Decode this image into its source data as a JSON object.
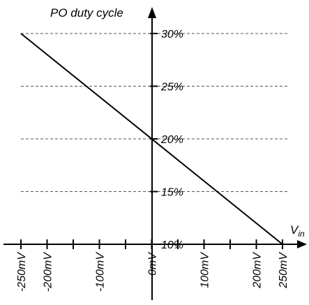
{
  "chart_data": {
    "type": "line",
    "title": "",
    "ylabel": "PO duty cycle",
    "xlabel": {
      "main": "V",
      "sub": "in"
    },
    "x_unit": "mV",
    "y_unit": "%",
    "xlim": [
      -250,
      250
    ],
    "ylim": [
      10,
      30
    ],
    "grid_y": true,
    "x_ticks": [
      -250,
      -200,
      -150,
      -100,
      -50,
      0,
      50,
      100,
      150,
      200,
      250
    ],
    "x_tick_labels": [
      {
        "x": -250,
        "text": "-250mV"
      },
      {
        "x": -200,
        "text": "-200mV"
      },
      {
        "x": -100,
        "text": "-100mV"
      },
      {
        "x": 0,
        "text": "0mV"
      },
      {
        "x": 100,
        "text": "100mV"
      },
      {
        "x": 200,
        "text": "200mV"
      },
      {
        "x": 250,
        "text": "250mV"
      }
    ],
    "y_ticks": [
      10,
      15,
      20,
      25,
      30
    ],
    "y_tick_labels": [
      "10%",
      "15%",
      "20%",
      "25%",
      "30%"
    ],
    "series": [
      {
        "x": [
          -250,
          250
        ],
        "y": [
          30,
          10
        ]
      }
    ]
  }
}
